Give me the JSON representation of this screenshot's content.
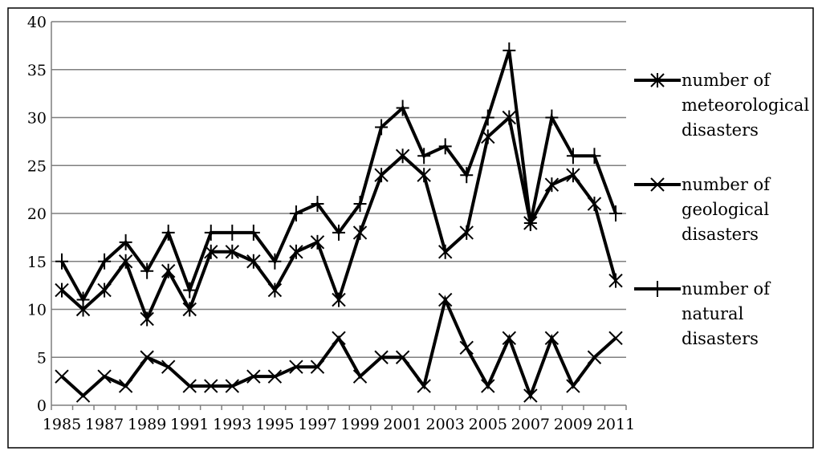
{
  "chart_data": {
    "type": "line",
    "x": [
      1985,
      1986,
      1987,
      1988,
      1989,
      1990,
      1991,
      1992,
      1993,
      1994,
      1995,
      1996,
      1997,
      1998,
      1999,
      2000,
      2001,
      2002,
      2003,
      2004,
      2005,
      2006,
      2007,
      2008,
      2009,
      2010,
      2011
    ],
    "xtick_labels": [
      "1985",
      "1987",
      "1989",
      "1991",
      "1993",
      "1995",
      "1997",
      "1999",
      "2001",
      "2003",
      "2005",
      "2007",
      "2009",
      "2011"
    ],
    "xtick_values": [
      1985,
      1987,
      1989,
      1991,
      1993,
      1995,
      1997,
      1999,
      2001,
      2003,
      2005,
      2007,
      2009,
      2011
    ],
    "ylim": [
      0,
      40
    ],
    "yticks": [
      0,
      5,
      10,
      15,
      20,
      25,
      30,
      35,
      40
    ],
    "ytick_labels": [
      "0",
      "5",
      "10",
      "15",
      "20",
      "25",
      "30",
      "35",
      "40"
    ],
    "grid": true,
    "legend_position": "right",
    "series": [
      {
        "name": "number of meteorological disasters",
        "legend_lines": [
          "number of",
          "meteorological",
          "disasters"
        ],
        "marker": "asterisk",
        "values": [
          12,
          10,
          12,
          15,
          9,
          14,
          10,
          16,
          16,
          15,
          12,
          16,
          17,
          11,
          18,
          24,
          26,
          24,
          16,
          18,
          28,
          30,
          19,
          23,
          24,
          21,
          13
        ]
      },
      {
        "name": "number of geological disasters",
        "legend_lines": [
          "number of",
          "geological",
          "disasters"
        ],
        "marker": "x",
        "values": [
          3,
          1,
          3,
          2,
          5,
          4,
          2,
          2,
          2,
          3,
          3,
          4,
          4,
          7,
          3,
          5,
          5,
          2,
          11,
          6,
          2,
          7,
          1,
          7,
          2,
          5,
          7
        ]
      },
      {
        "name": "number of natural disasters",
        "legend_lines": [
          "number of",
          "natural",
          "disasters"
        ],
        "marker": "plus",
        "values": [
          15,
          11,
          15,
          17,
          14,
          18,
          12,
          18,
          18,
          18,
          15,
          20,
          21,
          18,
          21,
          29,
          31,
          26,
          27,
          24,
          30,
          37,
          19,
          30,
          26,
          26,
          20
        ]
      }
    ]
  }
}
